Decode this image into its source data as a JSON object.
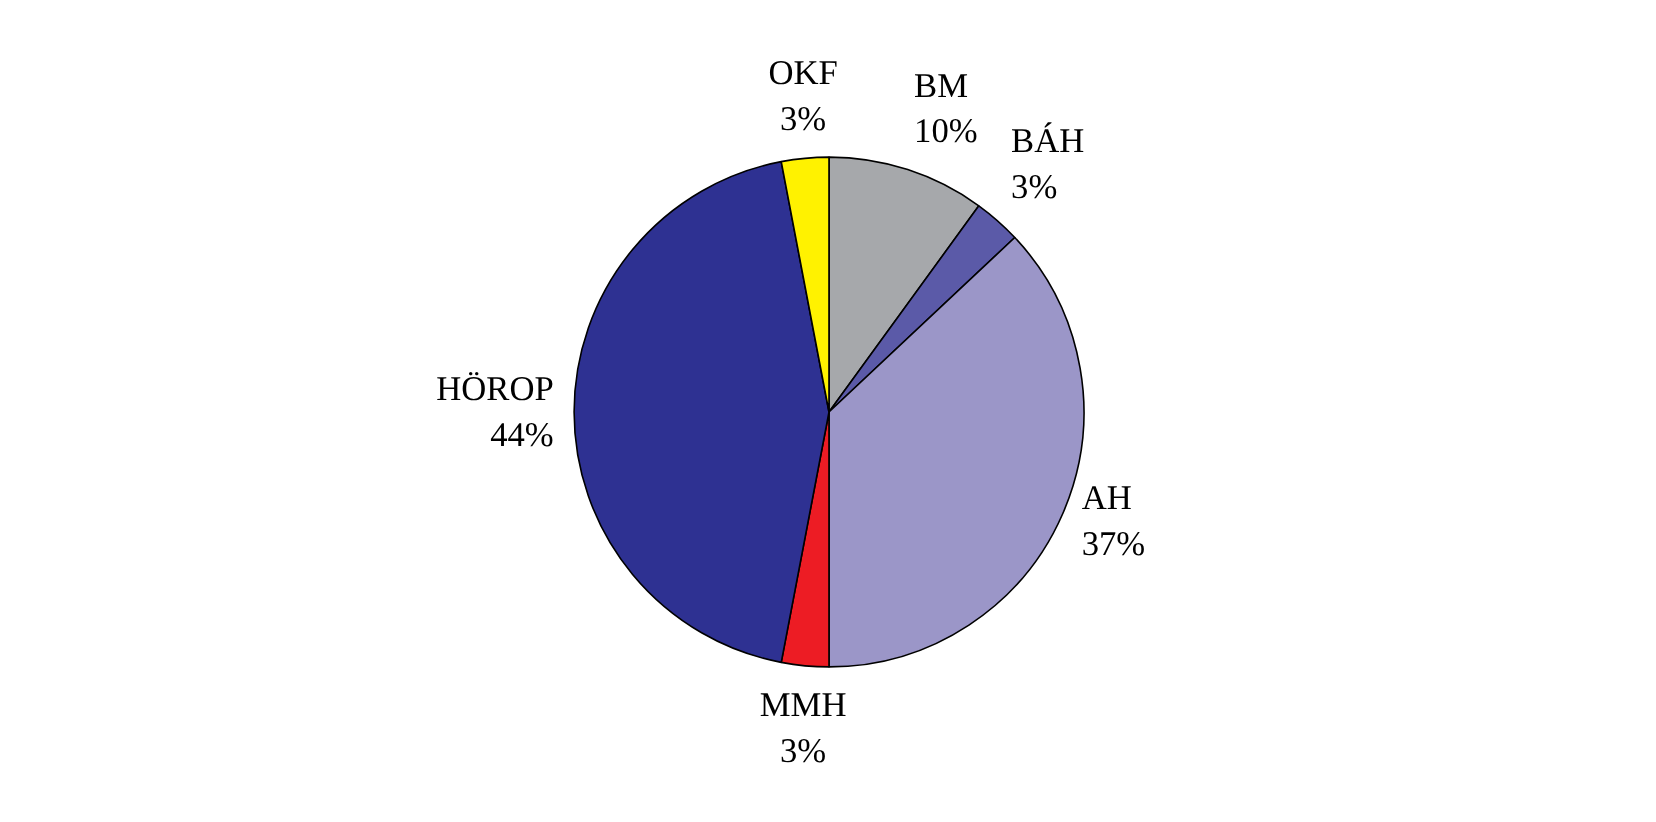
{
  "chart_data": {
    "type": "pie",
    "categories": [
      "BM",
      "BÁH",
      "AH",
      "MMH",
      "HÖROP",
      "OKF"
    ],
    "values": [
      10,
      3,
      37,
      3,
      44,
      3
    ],
    "value_labels": [
      "10%",
      "3%",
      "37%",
      "3%",
      "44%",
      "3%"
    ],
    "colors": [
      "#a6a8ab",
      "#5b5aa8",
      "#9b96c8",
      "#ed1c24",
      "#2e3192",
      "#fff200"
    ]
  }
}
